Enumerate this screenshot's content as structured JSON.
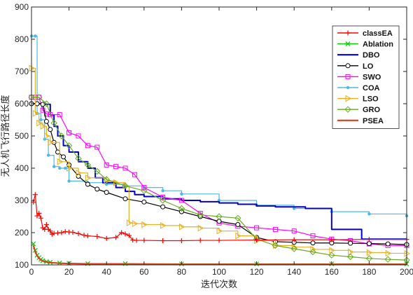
{
  "chart_data": {
    "type": "line",
    "title": "",
    "xlabel": "迭代次数",
    "ylabel": "无人机飞行路径长度",
    "xlim": [
      0,
      200
    ],
    "ylim": [
      100,
      900
    ],
    "xticks": [
      0,
      20,
      40,
      60,
      80,
      100,
      120,
      140,
      160,
      180,
      200
    ],
    "yticks": [
      100,
      200,
      300,
      400,
      500,
      600,
      700,
      800,
      900
    ],
    "grid": false,
    "legend_position": "top-right",
    "series": [
      {
        "name": "classEA",
        "color": "#ff0000",
        "marker": "plus",
        "step": false,
        "x": [
          1,
          2,
          3,
          4,
          5,
          6,
          7,
          8,
          9,
          10,
          11,
          12,
          14,
          16,
          18,
          20,
          22,
          25,
          28,
          30,
          35,
          40,
          45,
          48,
          50,
          52,
          54,
          56,
          60,
          70,
          80,
          90,
          100,
          120,
          140,
          160,
          180,
          200
        ],
        "y": [
          295,
          318,
          252,
          260,
          245,
          215,
          210,
          225,
          210,
          205,
          195,
          198,
          199,
          200,
          203,
          202,
          201,
          197,
          192,
          190,
          188,
          182,
          185,
          200,
          196,
          191,
          177,
          176,
          176,
          175,
          175,
          176,
          176,
          177,
          178,
          178,
          179,
          179
        ]
      },
      {
        "name": "Ablation",
        "color": "#00cc00",
        "marker": "x",
        "step": false,
        "x": [
          1,
          2,
          3,
          4,
          5,
          6,
          8,
          10,
          15,
          20,
          30,
          50,
          80,
          120,
          160,
          200
        ],
        "y": [
          165,
          145,
          130,
          122,
          117,
          113,
          110,
          108,
          106,
          105,
          104,
          104,
          103,
          103,
          103,
          103
        ]
      },
      {
        "name": "DBO",
        "color": "#0000cc",
        "marker": "none",
        "step": true,
        "x": [
          0,
          3,
          6,
          10,
          12,
          14,
          17,
          20,
          25,
          30,
          34,
          38,
          45,
          50,
          55,
          60,
          70,
          80,
          90,
          100,
          110,
          120,
          130,
          146,
          160,
          176,
          200
        ],
        "y": [
          600,
          600,
          598,
          565,
          530,
          500,
          470,
          450,
          420,
          400,
          370,
          355,
          340,
          328,
          318,
          312,
          305,
          300,
          296,
          292,
          288,
          283,
          280,
          275,
          210,
          180,
          180
        ]
      },
      {
        "name": "LO",
        "color": "#000000",
        "marker": "circle",
        "step": false,
        "x": [
          0,
          3,
          6,
          8,
          10,
          12,
          14,
          17,
          20,
          25,
          30,
          35,
          40,
          50,
          60,
          70,
          80,
          90,
          100,
          110,
          120,
          130,
          140,
          150,
          160,
          170,
          180,
          190,
          200
        ],
        "y": [
          600,
          600,
          598,
          545,
          520,
          480,
          450,
          435,
          410,
          375,
          350,
          335,
          325,
          305,
          295,
          280,
          265,
          250,
          235,
          225,
          185,
          172,
          170,
          168,
          168,
          167,
          166,
          165,
          163
        ]
      },
      {
        "name": "SWO",
        "color": "#ff00ff",
        "marker": "square",
        "step": false,
        "x": [
          0,
          2,
          4,
          6,
          8,
          10,
          15,
          20,
          25,
          30,
          35,
          40,
          45,
          50,
          55,
          60,
          70,
          80,
          90,
          100,
          110,
          120,
          130,
          140,
          150,
          160,
          170,
          180,
          190,
          200
        ],
        "y": [
          620,
          620,
          620,
          580,
          568,
          566,
          566,
          510,
          500,
          470,
          465,
          410,
          405,
          400,
          380,
          340,
          310,
          300,
          260,
          230,
          220,
          215,
          210,
          205,
          190,
          180,
          175,
          165,
          160,
          160
        ]
      },
      {
        "name": "COA",
        "color": "#4db8e6",
        "marker": "dot",
        "step": true,
        "x": [
          0,
          2,
          3,
          5,
          7,
          9,
          12,
          15,
          18,
          20,
          30,
          40,
          50,
          60,
          70,
          80,
          100,
          120,
          140,
          160,
          180,
          200
        ],
        "y": [
          810,
          810,
          570,
          550,
          490,
          440,
          405,
          400,
          400,
          360,
          355,
          350,
          345,
          340,
          330,
          320,
          300,
          285,
          275,
          265,
          258,
          252
        ]
      },
      {
        "name": "LSO",
        "color": "#e6b020",
        "marker": "triangle-right",
        "step": true,
        "x": [
          0,
          2,
          4,
          6,
          8,
          10,
          15,
          20,
          25,
          30,
          40,
          45,
          50,
          52,
          55,
          60,
          70,
          80,
          90,
          100,
          110,
          120,
          130,
          140,
          150,
          160,
          170,
          180,
          190,
          200
        ],
        "y": [
          710,
          570,
          540,
          530,
          500,
          480,
          420,
          400,
          385,
          370,
          360,
          355,
          345,
          230,
          228,
          225,
          222,
          218,
          214,
          205,
          190,
          175,
          160,
          155,
          148,
          145,
          140,
          138,
          136,
          135
        ]
      },
      {
        "name": "GRO",
        "color": "#66aa22",
        "marker": "diamond",
        "step": false,
        "x": [
          0,
          4,
          8,
          12,
          16,
          20,
          25,
          30,
          35,
          40,
          50,
          60,
          70,
          80,
          90,
          100,
          110,
          120,
          130,
          140,
          150,
          160,
          170,
          180,
          190,
          200
        ],
        "y": [
          620,
          620,
          600,
          540,
          500,
          470,
          430,
          410,
          390,
          365,
          345,
          330,
          300,
          275,
          255,
          250,
          245,
          180,
          160,
          150,
          140,
          130,
          125,
          120,
          117,
          115
        ]
      },
      {
        "name": "PSEA",
        "color": "#e03a1e",
        "marker": "none",
        "step": false,
        "x": [
          1,
          2,
          3,
          4,
          5,
          6,
          8,
          10,
          15,
          20,
          30,
          50,
          80,
          120,
          160,
          200
        ],
        "y": [
          160,
          140,
          128,
          120,
          115,
          112,
          109,
          107,
          105,
          104,
          103,
          102,
          102,
          102,
          102,
          102
        ]
      }
    ]
  }
}
